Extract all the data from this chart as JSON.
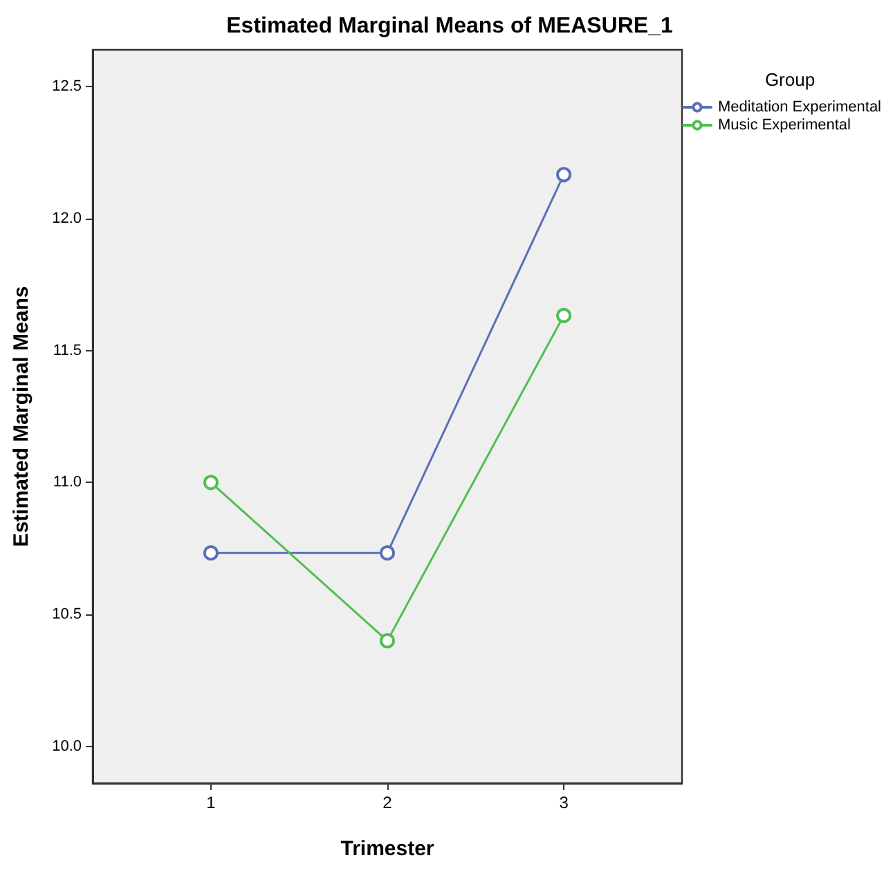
{
  "chart_data": {
    "type": "line",
    "title": "Estimated Marginal Means of MEASURE_1",
    "xlabel": "Trimester",
    "ylabel": "Estimated Marginal Means",
    "legend_title": "Group",
    "x": [
      1,
      2,
      3
    ],
    "series": [
      {
        "name": "Meditation Experimental",
        "color": "#5a6fb9",
        "values": [
          10.733,
          10.733,
          12.167
        ]
      },
      {
        "name": "Music Experimental",
        "color": "#4fbf4f",
        "values": [
          11.0,
          10.4,
          11.633
        ]
      }
    ],
    "xlim": [
      0.33,
      3.67
    ],
    "xticks": [
      1,
      2,
      3
    ],
    "ylim": [
      9.86,
      12.64
    ],
    "yticks": [
      {
        "value": 10,
        "label": "10.0"
      },
      10.5,
      {
        "value": 11,
        "label": "11.0"
      },
      11.5,
      {
        "value": 12,
        "label": "12.0"
      },
      12.5
    ],
    "grid": false,
    "legend": "top right",
    "marker": "circle",
    "line_style": "solid"
  }
}
